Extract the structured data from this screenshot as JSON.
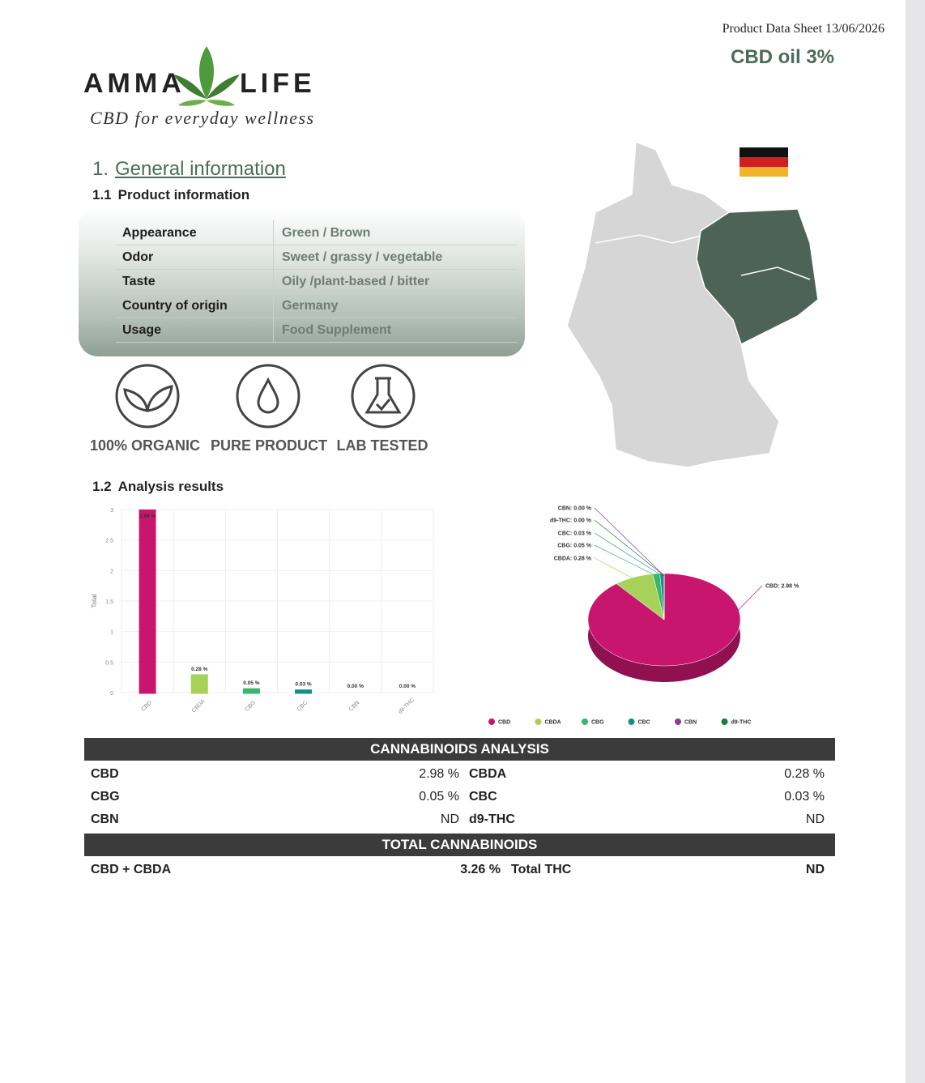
{
  "header": {
    "doc_label": "Product Data Sheet 13/06/2026",
    "product": "CBD oil 3%"
  },
  "logo": {
    "left": "AMMA",
    "right": "LIFE",
    "tagline": "CBD for everyday wellness"
  },
  "section": {
    "number": "1.",
    "title": "General information"
  },
  "product_info": {
    "number": "1.1",
    "title": "Product information",
    "rows": [
      [
        "Appearance",
        "Green / Brown"
      ],
      [
        "Odor",
        "Sweet / grassy / vegetable"
      ],
      [
        "Taste",
        "Oily /plant-based / bitter"
      ],
      [
        "Country of origin",
        "Germany"
      ],
      [
        "Usage",
        "Food Supplement"
      ]
    ]
  },
  "badges": [
    "100% ORGANIC",
    "PURE PRODUCT",
    "LAB TESTED"
  ],
  "analysis": {
    "number": "1.2",
    "title": "Analysis results"
  },
  "chart_data": [
    {
      "type": "bar",
      "ylabel": "Total",
      "categories": [
        "CBD",
        "CBDA",
        "CBG",
        "CBC",
        "CBN",
        "d9-THC"
      ],
      "values": [
        2.98,
        0.28,
        0.05,
        0.03,
        0,
        0
      ],
      "value_labels": [
        "2.98 %",
        "0.28 %",
        "0.05 %",
        "0.03 %",
        "0.00 %",
        "0.00 %"
      ],
      "colors": [
        "#c8166f",
        "#a6d25a",
        "#3ab56b",
        "#138f8c",
        "#8e3a9e",
        "#1d7a3a"
      ],
      "ylim": [
        0,
        3
      ],
      "yticks": [
        0,
        0.5,
        1,
        1.5,
        2,
        2.5,
        3
      ],
      "grid": true
    },
    {
      "type": "pie",
      "categories": [
        "CBD",
        "CBDA",
        "CBG",
        "CBC",
        "CBN",
        "d9-THC"
      ],
      "values": [
        2.98,
        0.28,
        0.05,
        0.03,
        0,
        0
      ],
      "value_labels": [
        "CBD: 2.98 %",
        "CBDA: 0.28 %",
        "CBG: 0.05 %",
        "CBC: 0.03 %",
        "CBN: 0.00 %",
        "d9-THC: 0.00 %"
      ],
      "colors": [
        "#c8166f",
        "#a6d25a",
        "#3ab56b",
        "#138f8c",
        "#8e3a9e",
        "#1d7a3a"
      ],
      "legend": "bottom"
    }
  ],
  "cannabinoids_table": {
    "title": "CANNABINOIDS ANALYSIS",
    "rows": [
      [
        "CBD",
        "2.98 %",
        "CBDA",
        "0.28 %"
      ],
      [
        "CBG",
        "0.05 %",
        "CBC",
        "0.03 %"
      ],
      [
        "CBN",
        "ND",
        "d9-THC",
        "ND"
      ]
    ]
  },
  "totals_table": {
    "title": "TOTAL CANNABINOIDS",
    "rows": [
      [
        "CBD + CBDA",
        "3.26 %",
        "Total THC",
        "ND"
      ]
    ]
  }
}
